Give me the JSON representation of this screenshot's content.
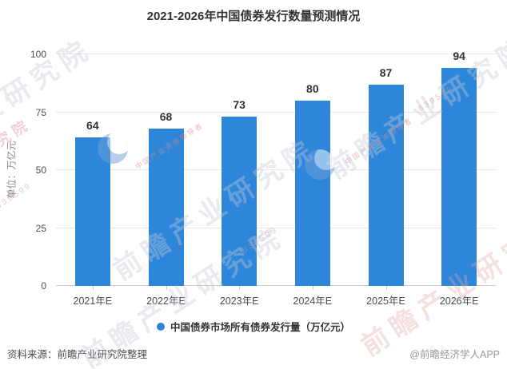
{
  "title": "2021-2026年中国债券发行数量预测情况",
  "chart_data": {
    "type": "bar",
    "categories": [
      "2021年E",
      "2022年E",
      "2023年E",
      "2024年E",
      "2025年E",
      "2026年E"
    ],
    "values": [
      64,
      68,
      73,
      80,
      87,
      94
    ],
    "title": "2021-2026年中国债券发行数量预测情况",
    "xlabel": "",
    "ylabel": "单位：万亿元",
    "ylim": [
      0,
      100
    ],
    "yticks": [
      0,
      25,
      50,
      75,
      100
    ],
    "grid": true,
    "value_labels": true,
    "legend": [
      "中国债券市场所有债券发行量（万亿元）"
    ],
    "legend_position": "bottom",
    "bar_color": "#2E86DB"
  },
  "footer": {
    "source": "资料来源：前瞻产业研究院整理",
    "credit": "@前瞻经济学人APP"
  },
  "watermark": {
    "brand": "前瞻产业研究院",
    "tagline": "中国产业咨询领导者",
    "serial": "839599"
  },
  "colors": {
    "bar": "#2E86DB",
    "grid": "#e7e7e7",
    "axis": "#cccccc",
    "title": "#333333",
    "tick": "#4d4d4d",
    "source": "#4d4d4d",
    "credit": "#999999"
  }
}
